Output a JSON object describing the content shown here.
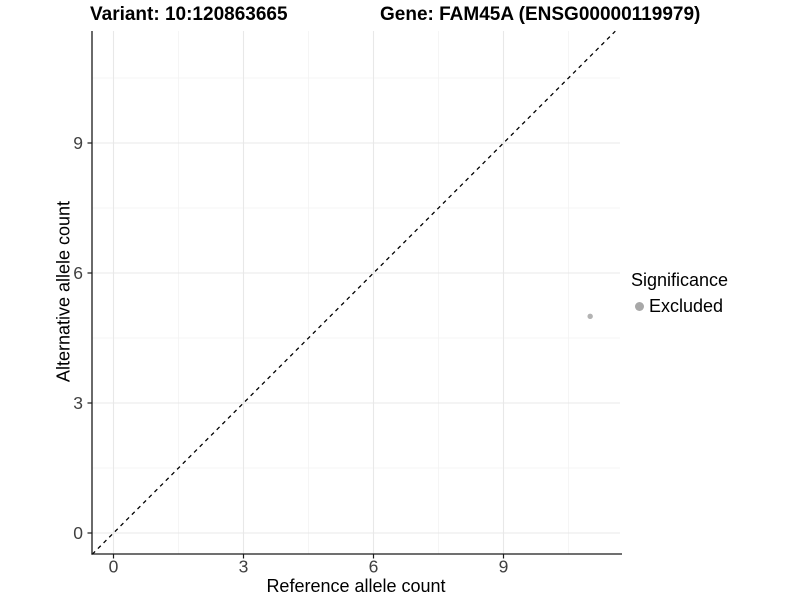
{
  "titles": {
    "variant": "Variant: 10:120863665",
    "gene": "Gene: FAM45A (ENSG00000119979)"
  },
  "chart_data": {
    "type": "scatter",
    "xlabel": "Reference allele count",
    "ylabel": "Alternative allele count",
    "x_ticks": [
      0,
      3,
      6,
      9
    ],
    "y_ticks": [
      0,
      3,
      6,
      9
    ],
    "minor_ticks": [
      1.5,
      4.5,
      7.5,
      10.5
    ],
    "xlim": [
      -0.5,
      11.69
    ],
    "ylim": [
      -0.49,
      11.58
    ],
    "grid": true,
    "identity_line": {
      "style": "dashed",
      "color": "#000000",
      "equation": "y = x"
    },
    "points": [
      {
        "x": 11,
        "y": 5,
        "significance": "Excluded",
        "color": "#b3b3b3"
      }
    ],
    "legend": {
      "position": "right",
      "title": "Significance",
      "entries": [
        {
          "label": "Excluded",
          "color": "#a8a8a8"
        }
      ]
    },
    "colors": {
      "background": "#ffffff",
      "major_grid": "#e8e8e8",
      "minor_grid": "#f3f3f3",
      "axis_line": "#1a1a1a",
      "tick_label": "#404040"
    }
  }
}
